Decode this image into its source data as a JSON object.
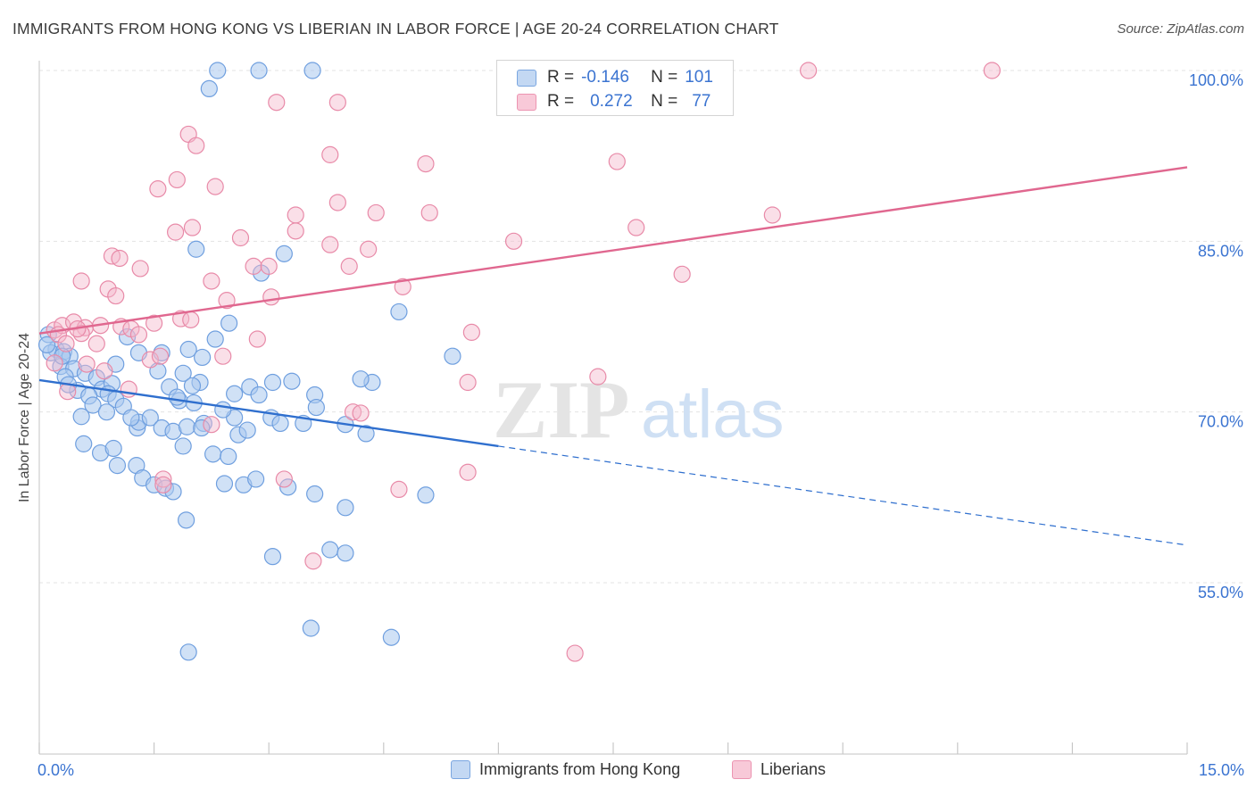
{
  "title": "IMMIGRANTS FROM HONG KONG VS LIBERIAN IN LABOR FORCE | AGE 20-24 CORRELATION CHART",
  "source": "Source: ZipAtlas.com",
  "watermark": {
    "zip": "ZIP",
    "atlas": "atlas"
  },
  "legend": {
    "rows": [
      {
        "r_label": "R =",
        "r_value": "-0.146",
        "n_label": "N =",
        "n_value": "101"
      },
      {
        "r_label": "R =",
        "r_value": "0.272",
        "n_label": "N =",
        "n_value": "77"
      }
    ]
  },
  "colors": {
    "blue_fill": "#a9c8ef",
    "blue_stroke": "#6f9fdf",
    "blue_line": "#2f6fce",
    "pink_fill": "#f5b8cc",
    "pink_stroke": "#e88aa8",
    "pink_line": "#e0678f",
    "tick_label": "#3b74d1",
    "grid": "#e3e3e3"
  },
  "chart_data": {
    "type": "scatter",
    "title": "IMMIGRANTS FROM HONG KONG VS LIBERIAN IN LABOR FORCE | AGE 20-24 CORRELATION CHART",
    "xlabel": "",
    "ylabel": "In Labor Force | Age 20-24",
    "xlim": [
      0,
      15
    ],
    "ylim": [
      40,
      102
    ],
    "x_tick_labels": [
      "0.0%",
      "15.0%"
    ],
    "y_ticks": [
      55,
      70,
      85,
      100
    ],
    "y_tick_labels": [
      "55.0%",
      "70.0%",
      "85.0%",
      "100.0%"
    ],
    "grid": true,
    "legend_position": "bottom-center",
    "series": [
      {
        "name": "Immigrants from Hong Kong",
        "color": "#a9c8ef",
        "trend": {
          "x": [
            0,
            6
          ],
          "y": [
            72.8,
            67.0
          ],
          "dashed_to": [
            15,
            58.3
          ]
        },
        "points": [
          [
            2.33,
            100
          ],
          [
            2.87,
            100
          ],
          [
            3.57,
            100
          ],
          [
            2.22,
            98.4
          ],
          [
            2.05,
            84.3
          ],
          [
            2.9,
            82.2
          ],
          [
            3.2,
            83.9
          ],
          [
            4.7,
            78.8
          ],
          [
            0.12,
            76.8
          ],
          [
            0.22,
            75.5
          ],
          [
            0.15,
            75.2
          ],
          [
            0.32,
            75.3
          ],
          [
            0.4,
            74.9
          ],
          [
            0.28,
            74.0
          ],
          [
            0.45,
            73.8
          ],
          [
            0.34,
            73.1
          ],
          [
            0.6,
            73.4
          ],
          [
            0.75,
            73.0
          ],
          [
            0.5,
            71.9
          ],
          [
            0.82,
            72.0
          ],
          [
            0.95,
            72.5
          ],
          [
            0.65,
            71.4
          ],
          [
            0.9,
            71.6
          ],
          [
            1.0,
            71.1
          ],
          [
            0.7,
            70.6
          ],
          [
            0.55,
            69.6
          ],
          [
            0.88,
            70.0
          ],
          [
            1.1,
            70.5
          ],
          [
            0.58,
            67.2
          ],
          [
            0.8,
            66.4
          ],
          [
            0.97,
            66.8
          ],
          [
            1.28,
            68.6
          ],
          [
            1.3,
            69.1
          ],
          [
            1.2,
            69.5
          ],
          [
            1.45,
            69.5
          ],
          [
            1.6,
            68.6
          ],
          [
            1.75,
            68.3
          ],
          [
            1.88,
            67.0
          ],
          [
            1.02,
            65.3
          ],
          [
            1.27,
            65.3
          ],
          [
            1.35,
            64.2
          ],
          [
            1.5,
            63.6
          ],
          [
            1.65,
            63.3
          ],
          [
            1.75,
            63.0
          ],
          [
            1.92,
            60.5
          ],
          [
            1.15,
            76.6
          ],
          [
            1.3,
            75.2
          ],
          [
            1.6,
            75.2
          ],
          [
            1.95,
            75.5
          ],
          [
            2.13,
            74.8
          ],
          [
            2.3,
            76.4
          ],
          [
            2.48,
            77.8
          ],
          [
            1.55,
            73.6
          ],
          [
            1.88,
            73.4
          ],
          [
            2.1,
            72.6
          ],
          [
            1.7,
            72.2
          ],
          [
            2.0,
            72.3
          ],
          [
            1.83,
            71.0
          ],
          [
            2.02,
            70.8
          ],
          [
            2.15,
            69.0
          ],
          [
            1.93,
            68.7
          ],
          [
            2.12,
            68.6
          ],
          [
            2.27,
            66.3
          ],
          [
            2.47,
            66.1
          ],
          [
            2.55,
            69.5
          ],
          [
            2.6,
            68.0
          ],
          [
            2.72,
            68.4
          ],
          [
            2.75,
            72.2
          ],
          [
            2.55,
            71.6
          ],
          [
            2.87,
            71.5
          ],
          [
            3.05,
            72.6
          ],
          [
            3.03,
            69.5
          ],
          [
            3.15,
            69.0
          ],
          [
            3.45,
            69.0
          ],
          [
            3.6,
            71.5
          ],
          [
            3.62,
            70.4
          ],
          [
            4.0,
            68.9
          ],
          [
            4.27,
            68.1
          ],
          [
            4.35,
            72.6
          ],
          [
            4.2,
            72.9
          ],
          [
            5.4,
            74.9
          ],
          [
            2.42,
            63.7
          ],
          [
            2.67,
            63.6
          ],
          [
            2.83,
            64.1
          ],
          [
            3.25,
            63.4
          ],
          [
            3.6,
            62.8
          ],
          [
            4.0,
            61.6
          ],
          [
            5.05,
            62.7
          ],
          [
            3.8,
            57.9
          ],
          [
            4.0,
            57.6
          ],
          [
            3.05,
            57.3
          ],
          [
            3.55,
            51.0
          ],
          [
            4.6,
            50.2
          ],
          [
            1.95,
            48.9
          ],
          [
            0.3,
            74.9
          ],
          [
            1.0,
            74.2
          ],
          [
            1.8,
            71.3
          ],
          [
            2.4,
            70.2
          ],
          [
            3.3,
            72.7
          ],
          [
            0.1,
            75.9
          ],
          [
            0.38,
            72.4
          ]
        ]
      },
      {
        "name": "Liberians",
        "color": "#f5b8cc",
        "trend": {
          "x": [
            0,
            15
          ],
          "y": [
            76.9,
            91.5
          ]
        },
        "points": [
          [
            10.05,
            100
          ],
          [
            12.45,
            100
          ],
          [
            3.1,
            97.2
          ],
          [
            3.9,
            97.2
          ],
          [
            1.95,
            94.4
          ],
          [
            2.05,
            93.4
          ],
          [
            3.8,
            92.6
          ],
          [
            5.05,
            91.8
          ],
          [
            7.55,
            92.0
          ],
          [
            1.55,
            89.6
          ],
          [
            1.8,
            90.4
          ],
          [
            2.3,
            89.8
          ],
          [
            3.35,
            87.3
          ],
          [
            3.9,
            88.4
          ],
          [
            4.4,
            87.5
          ],
          [
            5.1,
            87.5
          ],
          [
            9.58,
            87.3
          ],
          [
            1.78,
            85.8
          ],
          [
            2.0,
            86.2
          ],
          [
            2.63,
            85.3
          ],
          [
            3.35,
            85.9
          ],
          [
            3.8,
            84.7
          ],
          [
            4.3,
            84.3
          ],
          [
            7.8,
            86.2
          ],
          [
            6.2,
            85.0
          ],
          [
            0.95,
            83.7
          ],
          [
            1.05,
            83.5
          ],
          [
            1.32,
            82.6
          ],
          [
            2.8,
            82.8
          ],
          [
            3.0,
            82.8
          ],
          [
            2.25,
            81.5
          ],
          [
            4.05,
            82.8
          ],
          [
            8.4,
            82.1
          ],
          [
            0.55,
            81.5
          ],
          [
            0.9,
            80.8
          ],
          [
            1.0,
            80.2
          ],
          [
            2.45,
            79.8
          ],
          [
            3.03,
            80.1
          ],
          [
            4.75,
            81.0
          ],
          [
            0.2,
            77.2
          ],
          [
            0.3,
            77.6
          ],
          [
            0.45,
            77.9
          ],
          [
            0.6,
            77.4
          ],
          [
            0.8,
            77.6
          ],
          [
            1.07,
            77.5
          ],
          [
            1.5,
            77.8
          ],
          [
            1.85,
            78.2
          ],
          [
            1.98,
            78.1
          ],
          [
            0.25,
            76.8
          ],
          [
            0.55,
            76.9
          ],
          [
            1.2,
            77.3
          ],
          [
            1.3,
            76.8
          ],
          [
            2.85,
            76.4
          ],
          [
            5.65,
            77.0
          ],
          [
            0.35,
            76.0
          ],
          [
            0.75,
            76.0
          ],
          [
            1.45,
            74.6
          ],
          [
            1.58,
            74.9
          ],
          [
            2.4,
            74.9
          ],
          [
            0.2,
            74.3
          ],
          [
            0.62,
            74.2
          ],
          [
            0.85,
            73.6
          ],
          [
            1.17,
            72.0
          ],
          [
            0.37,
            71.8
          ],
          [
            5.6,
            72.6
          ],
          [
            7.3,
            73.1
          ],
          [
            2.25,
            68.9
          ],
          [
            4.1,
            70.0
          ],
          [
            4.2,
            69.9
          ],
          [
            5.6,
            64.7
          ],
          [
            1.62,
            64.1
          ],
          [
            1.62,
            63.6
          ],
          [
            3.2,
            64.1
          ],
          [
            4.7,
            63.2
          ],
          [
            3.58,
            56.9
          ],
          [
            7.0,
            48.8
          ],
          [
            0.5,
            77.3
          ]
        ]
      }
    ]
  },
  "bottom_legend": [
    "Immigrants from Hong Kong",
    "Liberians"
  ]
}
